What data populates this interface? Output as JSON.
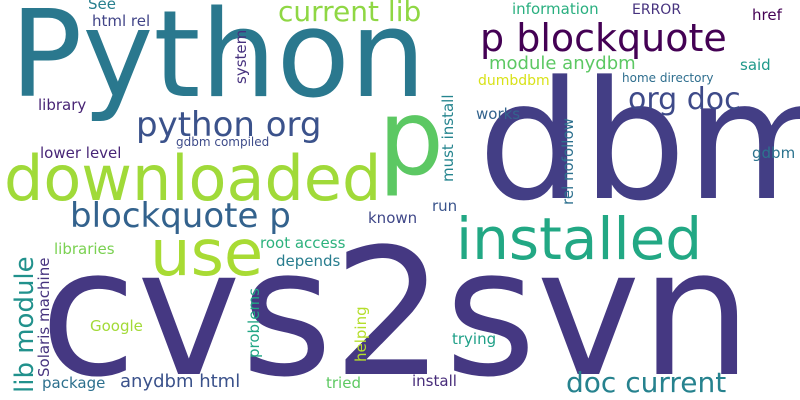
{
  "words": [
    {
      "text": "cvs2svn",
      "color": "#453882",
      "vertical": false
    },
    {
      "text": "dbm",
      "color": "#433e85",
      "vertical": false
    },
    {
      "text": "Python",
      "color": "#2a788e",
      "vertical": false
    },
    {
      "text": "p",
      "color": "#5cc863",
      "vertical": false
    },
    {
      "text": "downloaded",
      "color": "#a0da39",
      "vertical": false
    },
    {
      "text": "installed",
      "color": "#22a884",
      "vertical": false
    },
    {
      "text": "use",
      "color": "#a8db34",
      "vertical": false
    },
    {
      "text": "blockquote p",
      "color": "#33628d",
      "vertical": false
    },
    {
      "text": "p blockquote",
      "color": "#440154",
      "vertical": false
    },
    {
      "text": "python org",
      "color": "#3b528b",
      "vertical": false
    },
    {
      "text": "org doc",
      "color": "#3e4a89",
      "vertical": false
    },
    {
      "text": "doc current",
      "color": "#26828e",
      "vertical": false
    },
    {
      "text": "current lib",
      "color": "#8fd744",
      "vertical": false
    },
    {
      "text": "lib module",
      "color": "#21918c",
      "vertical": true
    },
    {
      "text": "module anydbm",
      "color": "#5cc863",
      "vertical": false
    },
    {
      "text": "anydbm html",
      "color": "#3b528b",
      "vertical": false
    },
    {
      "text": "html rel",
      "color": "#414487",
      "vertical": false
    },
    {
      "text": "See",
      "color": "#277f8e",
      "vertical": false
    },
    {
      "text": "system",
      "color": "#46317e",
      "vertical": true
    },
    {
      "text": "information",
      "color": "#29af7f",
      "vertical": false
    },
    {
      "text": "ERROR",
      "color": "#46327e",
      "vertical": false
    },
    {
      "text": "href",
      "color": "#440154",
      "vertical": false
    },
    {
      "text": "said",
      "color": "#1f998a",
      "vertical": false
    },
    {
      "text": "home directory",
      "color": "#2e6e8e",
      "vertical": false
    },
    {
      "text": "dumbdbm",
      "color": "#d8e219",
      "vertical": false
    },
    {
      "text": "library",
      "color": "#482475",
      "vertical": false
    },
    {
      "text": "works",
      "color": "#33638d",
      "vertical": false
    },
    {
      "text": "must install",
      "color": "#25848e",
      "vertical": true
    },
    {
      "text": "rel nofollow",
      "color": "#2d708e",
      "vertical": true
    },
    {
      "text": "gdbm",
      "color": "#2c738e",
      "vertical": false
    },
    {
      "text": "gdbm compiled",
      "color": "#3e4c8a",
      "vertical": false
    },
    {
      "text": "lower level",
      "color": "#482677",
      "vertical": false
    },
    {
      "text": "run",
      "color": "#3a548c",
      "vertical": false
    },
    {
      "text": "known",
      "color": "#3f4788",
      "vertical": false
    },
    {
      "text": "libraries",
      "color": "#7ad151",
      "vertical": false
    },
    {
      "text": "root access",
      "color": "#2db27d",
      "vertical": false
    },
    {
      "text": "depends",
      "color": "#287d8e",
      "vertical": false
    },
    {
      "text": "Solaris machine",
      "color": "#46337e",
      "vertical": true
    },
    {
      "text": "problems",
      "color": "#21a685",
      "vertical": true
    },
    {
      "text": "helping",
      "color": "#b5de2b",
      "vertical": true
    },
    {
      "text": "Google",
      "color": "#a2da37",
      "vertical": false
    },
    {
      "text": "trying",
      "color": "#1fa088",
      "vertical": false
    },
    {
      "text": "package",
      "color": "#2d708e",
      "vertical": false
    },
    {
      "text": "tried",
      "color": "#5ec962",
      "vertical": false
    },
    {
      "text": "install",
      "color": "#472c7a",
      "vertical": false
    }
  ]
}
